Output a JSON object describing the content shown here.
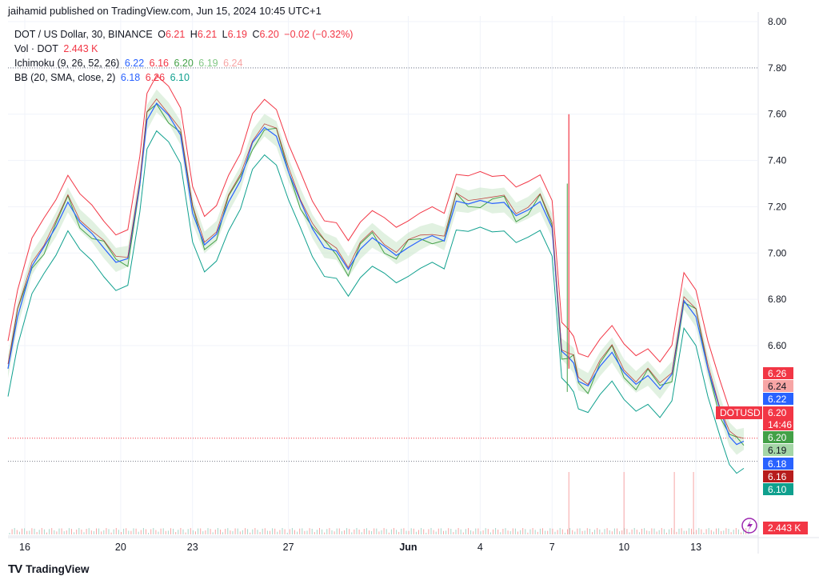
{
  "publish_line": "jaihamid published on TradingView.com, Jun 15, 2024 10:45 UTC+1",
  "legend": {
    "symbol": "DOT / US Dollar, 30, BINANCE",
    "o_label": "O",
    "o_value": "6.21",
    "h_label": "H",
    "h_value": "6.21",
    "l_label": "L",
    "l_value": "6.19",
    "c_label": "C",
    "c_value": "6.20",
    "change": "−0.02 (−0.32%)",
    "vol_label": "Vol · DOT",
    "vol_value": "2.443 K",
    "ichimoku_label": "Ichimoku (9, 26, 52, 26)",
    "ichimoku_values": [
      "6.22",
      "6.16",
      "6.20",
      "6.19",
      "6.24"
    ],
    "bb_label": "BB (20, SMA, close, 2)",
    "bb_values": [
      "6.18",
      "6.26",
      "6.10"
    ]
  },
  "colors": {
    "up": "#089981",
    "down": "#f23645",
    "price_line": "#2962ff",
    "bb_upper": "#f23645",
    "bb_lower": "#0fa08e",
    "lagging": "#43a047",
    "cloud_green": "#c8e6c9",
    "cloud_red": "#f8c8c8"
  },
  "chart_data": {
    "type": "line",
    "symbol": "DOTUSD",
    "ylim": [
      5.8,
      8.0
    ],
    "y_ticks": [
      "8.00",
      "7.80",
      "7.60",
      "7.40",
      "7.20",
      "7.00",
      "6.80",
      "6.60"
    ],
    "x_ticks": [
      "16",
      "20",
      "23",
      "27",
      "Jun",
      "4",
      "7",
      "10",
      "13"
    ],
    "x_tick_positions": [
      0,
      4,
      7,
      11,
      16,
      19,
      22,
      25,
      28
    ],
    "x_range": [
      -0.7,
      30.6
    ],
    "price_series": {
      "x": [
        -0.7,
        -0.3,
        0.3,
        0.8,
        1.3,
        1.8,
        2.3,
        2.8,
        3.3,
        3.8,
        4.3,
        4.8,
        5.1,
        5.5,
        6.0,
        6.5,
        7.0,
        7.5,
        8.0,
        8.5,
        9.0,
        9.5,
        10.0,
        10.5,
        11.0,
        11.5,
        12.0,
        12.5,
        13.0,
        13.5,
        14.0,
        14.5,
        15.0,
        15.5,
        16.0,
        16.5,
        17.0,
        17.5,
        18.0,
        18.5,
        19.0,
        19.5,
        20.0,
        20.5,
        21.0,
        21.5,
        22.0,
        22.4,
        22.7,
        22.9,
        23.1,
        23.5,
        24.0,
        24.5,
        25.0,
        25.5,
        26.0,
        26.5,
        27.0,
        27.5,
        28.0,
        28.5,
        29.0,
        29.4,
        29.7,
        30.0
      ],
      "y": [
        6.5,
        6.7,
        6.95,
        7.05,
        7.1,
        7.2,
        7.15,
        7.1,
        7.0,
        6.95,
        7.0,
        7.3,
        7.55,
        7.65,
        7.62,
        7.5,
        7.15,
        7.05,
        7.1,
        7.2,
        7.3,
        7.5,
        7.55,
        7.48,
        7.35,
        7.25,
        7.1,
        7.0,
        7.02,
        6.95,
        7.0,
        7.05,
        7.05,
        7.0,
        7.0,
        7.05,
        7.1,
        7.05,
        7.2,
        7.22,
        7.25,
        7.2,
        7.2,
        7.18,
        7.2,
        7.2,
        7.1,
        6.6,
        6.55,
        6.5,
        6.45,
        6.45,
        6.5,
        6.55,
        6.5,
        6.45,
        6.45,
        6.4,
        6.5,
        6.8,
        6.7,
        6.5,
        6.35,
        6.2,
        6.15,
        6.2
      ]
    },
    "volume_spikes_x": [
      22.7,
      25.0,
      27.1,
      27.9
    ],
    "price_labels": [
      {
        "value": 6.26,
        "text": "6.26",
        "color": "#f23645"
      },
      {
        "value": 6.24,
        "text": "6.24",
        "color": "#f7a5a5"
      },
      {
        "value": 6.22,
        "text": "6.22",
        "color": "#2962ff"
      },
      {
        "value": 6.2,
        "text": "6.20",
        "color": "#f23645",
        "tag": "DOTUSD",
        "sub": "14:46"
      },
      {
        "value": 6.2,
        "text": "6.20",
        "color": "#43a047"
      },
      {
        "value": 6.19,
        "text": "6.19",
        "color": "#a5d6a7"
      },
      {
        "value": 6.18,
        "text": "6.18",
        "color": "#2962ff"
      },
      {
        "value": 6.16,
        "text": "6.16",
        "color": "#b71c1c"
      },
      {
        "value": 6.1,
        "text": "6.10",
        "color": "#0fa08e"
      }
    ],
    "volume_label": "2.443 K",
    "hlines": [
      7.8,
      6.1
    ]
  }
}
